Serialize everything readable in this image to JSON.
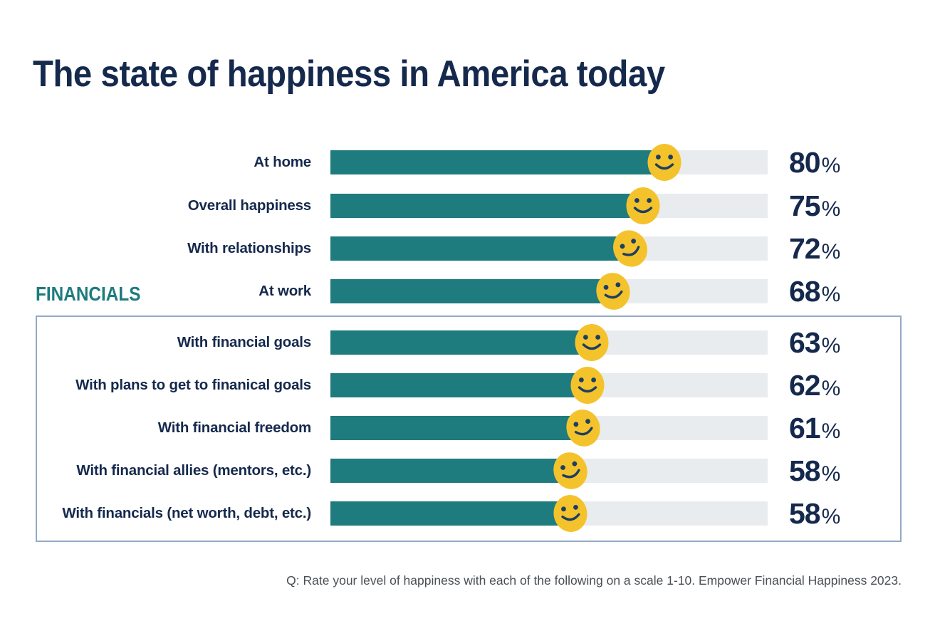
{
  "title": "The state of happiness in America today",
  "financials": {
    "label": "FINANCIALS"
  },
  "footnote": "Q: Rate your level of happiness with each of the following on a scale 1-10. Empower Financial Happiness 2023.",
  "chart_data": {
    "type": "bar",
    "orientation": "horizontal",
    "title": "The state of happiness in America today",
    "categories": [
      "At home",
      "Overall happiness",
      "With relationships",
      "At work",
      "With financial goals",
      "With plans to get to finanical goals",
      "With financial freedom",
      "With financial allies (mentors, etc.)",
      "With financials (net worth, debt, etc.)"
    ],
    "values": [
      80,
      75,
      72,
      68,
      63,
      62,
      61,
      58,
      58
    ],
    "unit": "%",
    "xlim": [
      0,
      100
    ],
    "grid": false,
    "legend": "none",
    "marker": "smiley-face-at-bar-end",
    "smiley_tilts_deg": [
      0,
      0,
      -25,
      -12,
      0,
      0,
      -14,
      -18,
      -8
    ],
    "group_annotation": {
      "label": "FINANCIALS",
      "applies_to_category_indexes": [
        4,
        5,
        6,
        7,
        8
      ],
      "style": "outlined-box"
    },
    "source_note": "Q: Rate your level of happiness with each of the following on a scale 1-10. Empower Financial Happiness 2023."
  },
  "colors": {
    "navy": "#15294D",
    "teal": "#1E7B7E",
    "track": "#E9ECEE",
    "yellow": "#F4C32C",
    "face": "#1C3E63",
    "box_border": "#93A9C8",
    "foot": "#4A4F54"
  }
}
